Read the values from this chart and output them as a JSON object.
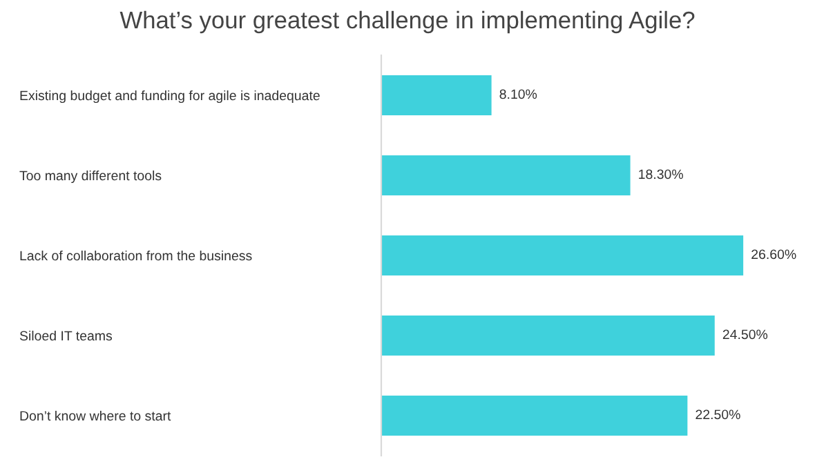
{
  "chart_data": {
    "type": "bar",
    "orientation": "horizontal",
    "title": "What’s your greatest challenge in implementing Agile?",
    "categories": [
      "Existing budget and funding for agile is inadequate",
      "Too many different tools",
      "Lack of collaboration from the business",
      "Siloed IT teams",
      "Don’t know where to start"
    ],
    "values": [
      8.1,
      18.3,
      26.6,
      24.5,
      22.5
    ],
    "value_labels": [
      "8.10%",
      "18.30%",
      "26.60%",
      "24.50%",
      "22.50%"
    ],
    "color": "#3fd1dc",
    "tick_labels": "y",
    "grid": false,
    "legend": false
  }
}
